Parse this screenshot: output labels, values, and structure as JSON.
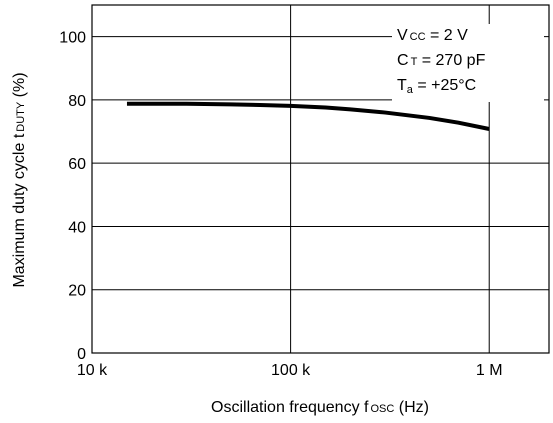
{
  "chart_data": {
    "type": "line",
    "xscale": "log",
    "xlim": [
      10000,
      2000000
    ],
    "ylim": [
      0,
      110
    ],
    "grid": true,
    "xticks": [
      {
        "value": 10000,
        "label": "10 k"
      },
      {
        "value": 100000,
        "label": "100 k"
      },
      {
        "value": 1000000,
        "label": "1 M"
      }
    ],
    "yticks": [
      {
        "value": 0,
        "label": "0"
      },
      {
        "value": 20,
        "label": "20"
      },
      {
        "value": 40,
        "label": "40"
      },
      {
        "value": 60,
        "label": "60"
      },
      {
        "value": 80,
        "label": "80"
      },
      {
        "value": 100,
        "label": "100"
      }
    ],
    "xlabel": {
      "pre": "Oscillation frequency f",
      "sub": "OSC",
      "post": " (Hz)"
    },
    "ylabel": {
      "pre": "Maximum duty cycle t",
      "sub": "DUTY",
      "post": " (%)"
    },
    "series": [
      {
        "points": [
          [
            15000,
            78.8
          ],
          [
            20000,
            78.8
          ],
          [
            30000,
            78.8
          ],
          [
            50000,
            78.6
          ],
          [
            70000,
            78.4
          ],
          [
            100000,
            78.1
          ],
          [
            150000,
            77.6
          ],
          [
            200000,
            77.0
          ],
          [
            300000,
            76.0
          ],
          [
            500000,
            74.3
          ],
          [
            700000,
            72.8
          ],
          [
            1000000,
            70.8
          ]
        ]
      }
    ],
    "annotation": {
      "line1": {
        "pre": "V",
        "sub": "CC",
        "post": " = 2 V"
      },
      "line2": {
        "pre": "C",
        "sub": "T",
        "post": " = 270 pF"
      },
      "line3": {
        "pre": "T",
        "sub": "a",
        "post": " = +25°C"
      }
    }
  }
}
